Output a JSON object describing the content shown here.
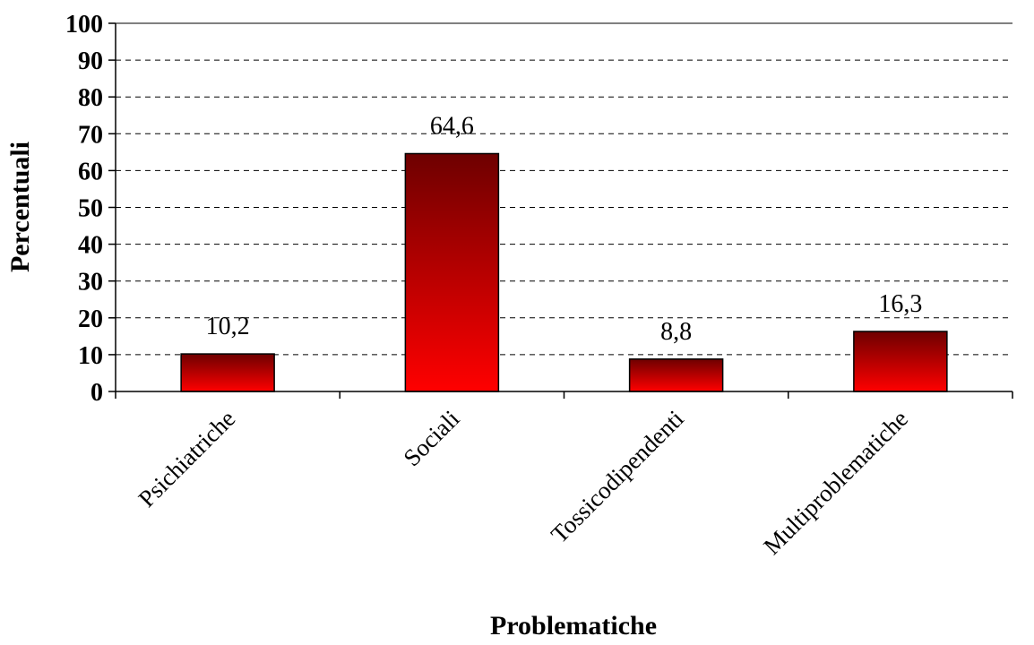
{
  "chart_data": {
    "type": "bar",
    "title": "",
    "xlabel": "Problematiche",
    "ylabel": "Percentuali",
    "categories": [
      "Psichiatriche",
      "Sociali",
      "Tossicodipendenti",
      "Multiproblematiche"
    ],
    "values": [
      10.2,
      64.6,
      8.8,
      16.3
    ],
    "value_labels": [
      "10,2",
      "64,6",
      "8,8",
      "16,3"
    ],
    "ylim": [
      0,
      100
    ],
    "yticks": [
      0,
      10,
      20,
      30,
      40,
      50,
      60,
      70,
      80,
      90,
      100
    ],
    "grid": "horizontal-dashed",
    "legend": "none",
    "colors": {
      "bar_top": "#6e0000",
      "bar_bottom": "#ff0000",
      "grid": "#000000"
    }
  }
}
